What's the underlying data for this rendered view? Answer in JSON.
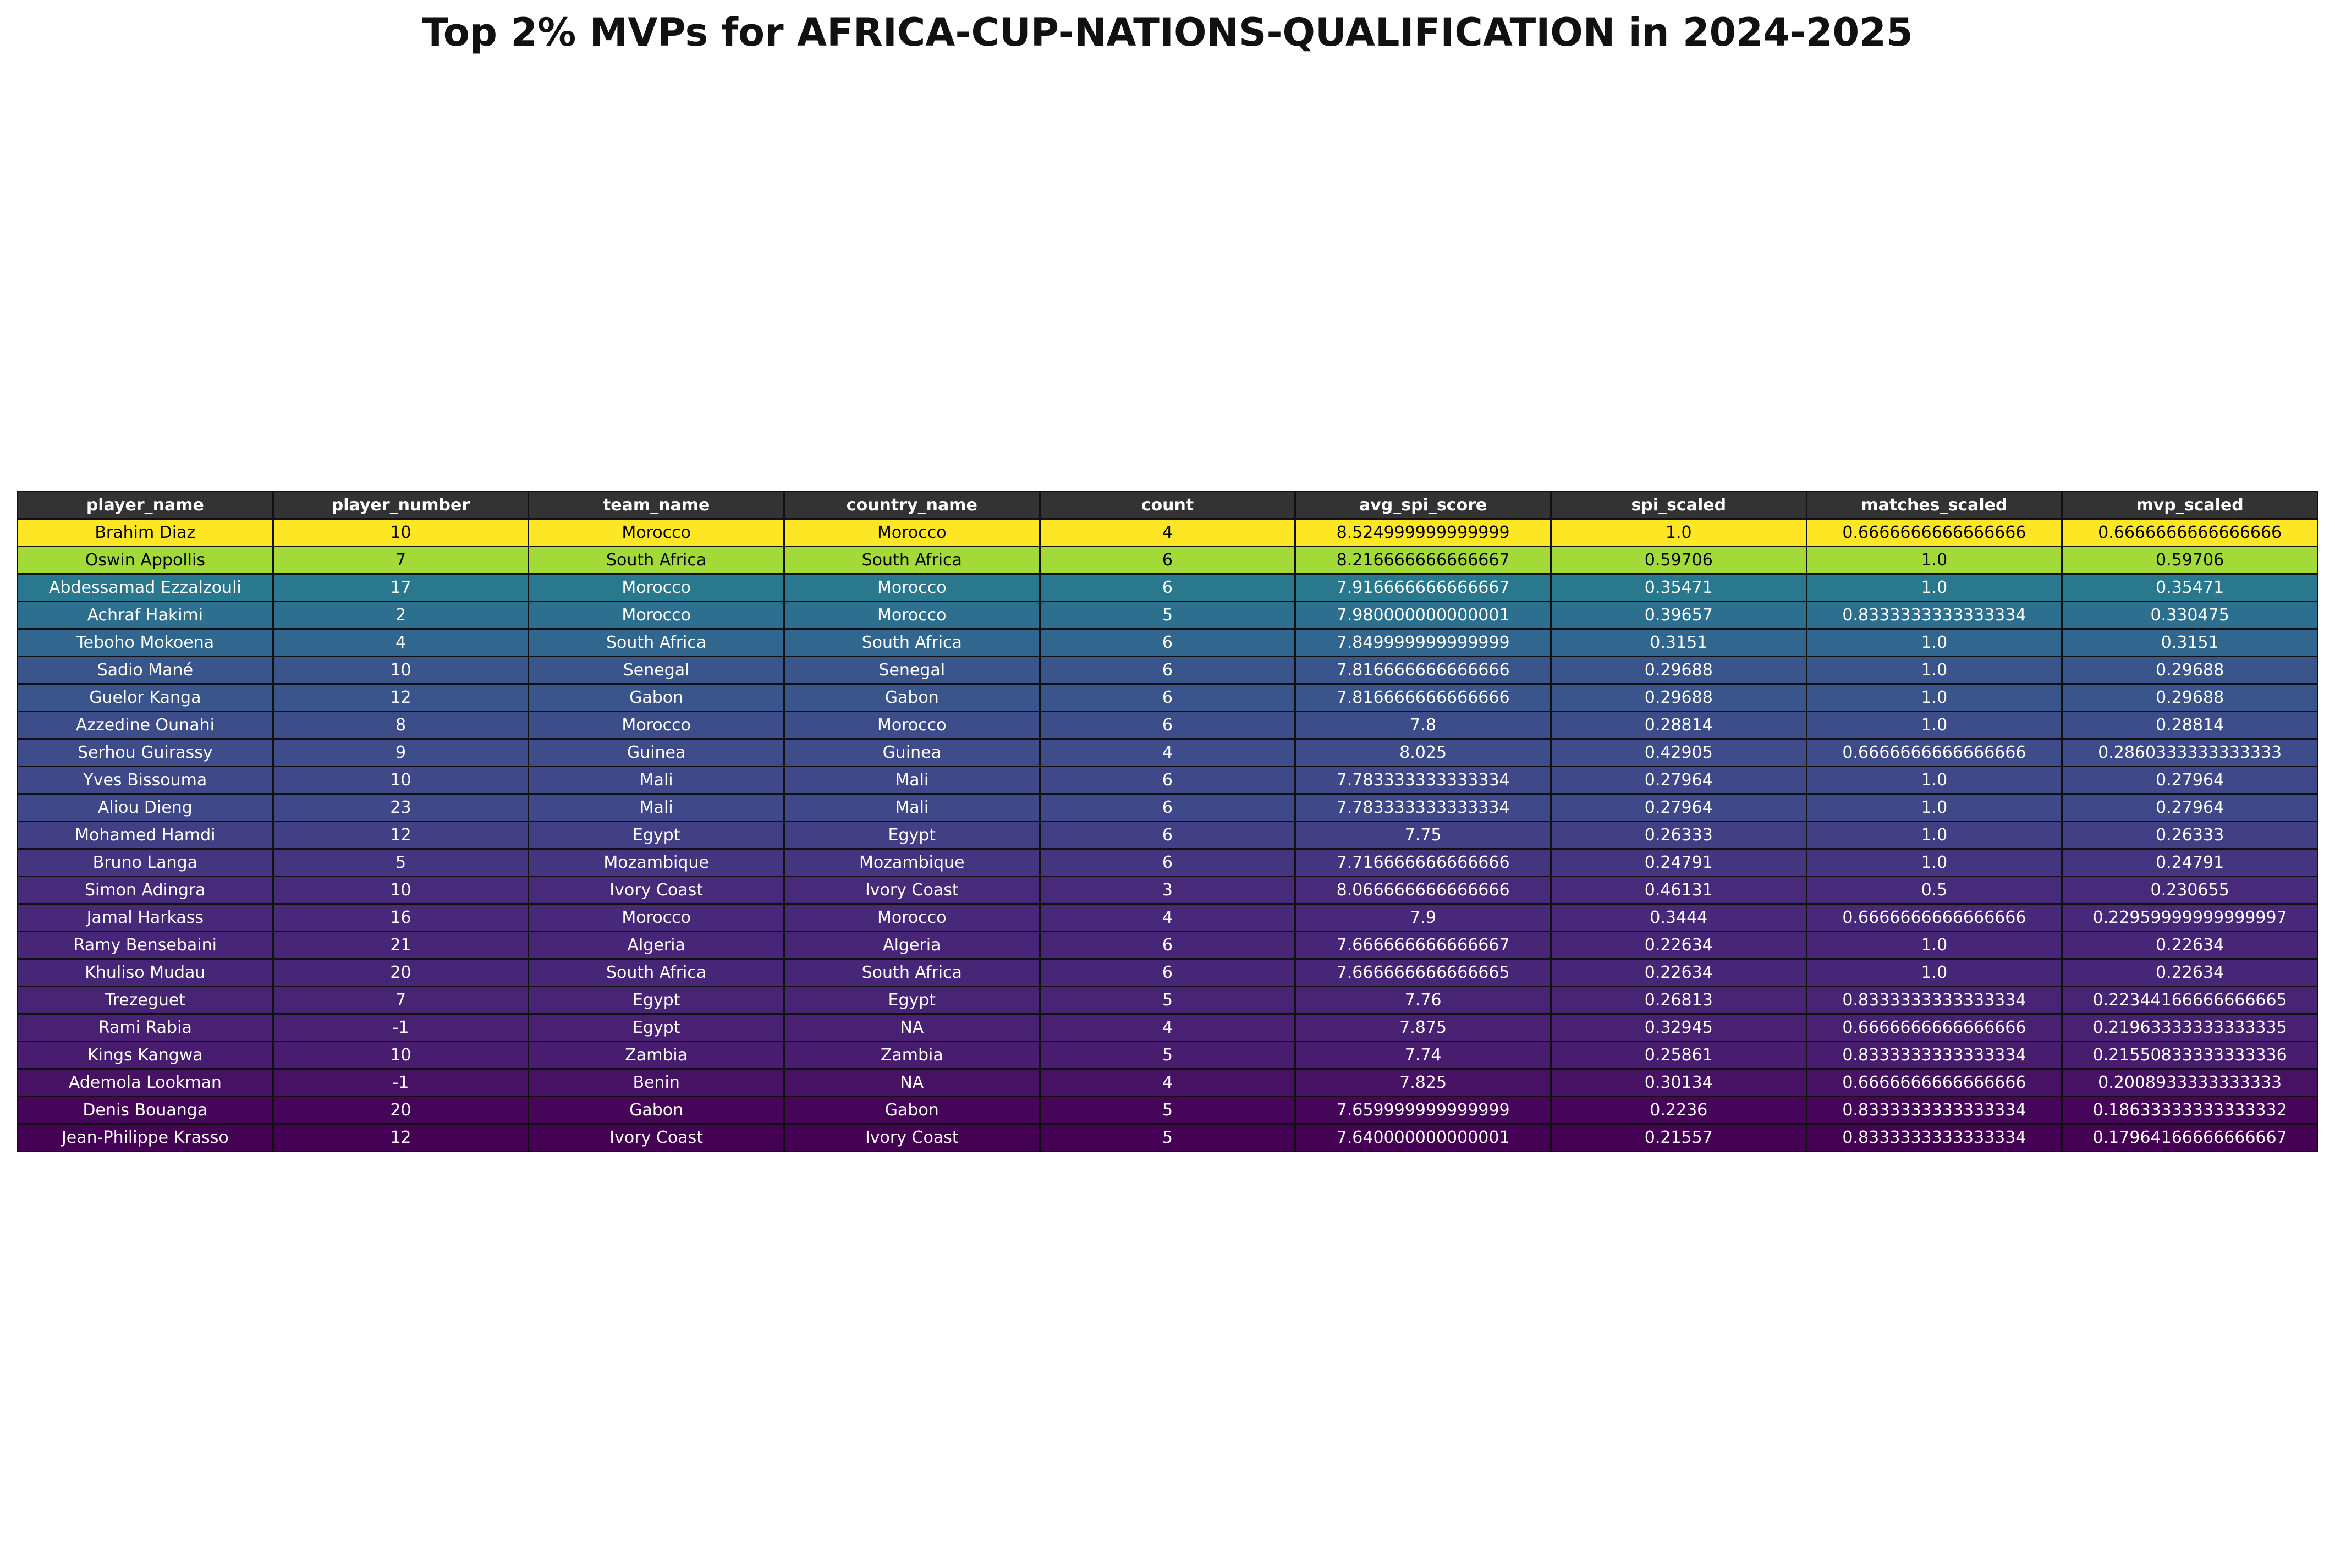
{
  "chart_data": {
    "type": "table",
    "title": "Top 2% MVPs for AFRICA-CUP-NATIONS-QUALIFICATION in 2024-2025",
    "columns": [
      "player_name",
      "player_number",
      "team_name",
      "country_name",
      "count",
      "avg_spi_score",
      "spi_scaled",
      "matches_scaled",
      "mvp_scaled"
    ],
    "row_colormap": "viridis",
    "header_color": "#333333",
    "rows": [
      {
        "cells": [
          "Brahim Diaz",
          "10",
          "Morocco",
          "Morocco",
          "4",
          "8.524999999999999",
          "1.0",
          "0.6666666666666666",
          "0.6666666666666666"
        ],
        "color": "#fde725",
        "text_color": "#000000"
      },
      {
        "cells": [
          "Oswin Appollis",
          "7",
          "South Africa",
          "South Africa",
          "6",
          "8.216666666666667",
          "0.59706",
          "1.0",
          "0.59706"
        ],
        "color": "#a2da37",
        "text_color": "#000000"
      },
      {
        "cells": [
          "Abdessamad Ezzalzouli",
          "17",
          "Morocco",
          "Morocco",
          "6",
          "7.916666666666667",
          "0.35471",
          "1.0",
          "0.35471"
        ],
        "color": "#2a788e",
        "text_color": "#ffffff"
      },
      {
        "cells": [
          "Achraf Hakimi",
          "2",
          "Morocco",
          "Morocco",
          "5",
          "7.980000000000001",
          "0.39657",
          "0.8333333333333334",
          "0.330475"
        ],
        "color": "#2d6f8e",
        "text_color": "#ffffff"
      },
      {
        "cells": [
          "Teboho Mokoena",
          "4",
          "South Africa",
          "South Africa",
          "6",
          "7.849999999999999",
          "0.3151",
          "1.0",
          "0.3151"
        ],
        "color": "#31668e",
        "text_color": "#ffffff"
      },
      {
        "cells": [
          "Sadio Mané",
          "10",
          "Senegal",
          "Senegal",
          "6",
          "7.816666666666666",
          "0.29688",
          "1.0",
          "0.29688"
        ],
        "color": "#3a548c",
        "text_color": "#ffffff"
      },
      {
        "cells": [
          "Guelor Kanga",
          "12",
          "Gabon",
          "Gabon",
          "6",
          "7.816666666666666",
          "0.29688",
          "1.0",
          "0.29688"
        ],
        "color": "#3a548c",
        "text_color": "#ffffff"
      },
      {
        "cells": [
          "Azzedine Ounahi",
          "8",
          "Morocco",
          "Morocco",
          "6",
          "7.8",
          "0.28814",
          "1.0",
          "0.28814"
        ],
        "color": "#3d4d8a",
        "text_color": "#ffffff"
      },
      {
        "cells": [
          "Serhou Guirassy",
          "9",
          "Guinea",
          "Guinea",
          "4",
          "8.025",
          "0.42905",
          "0.6666666666666666",
          "0.2860333333333333"
        ],
        "color": "#3e4c8a",
        "text_color": "#ffffff"
      },
      {
        "cells": [
          "Yves Bissouma",
          "10",
          "Mali",
          "Mali",
          "6",
          "7.783333333333334",
          "0.27964",
          "1.0",
          "0.27964"
        ],
        "color": "#3f4889",
        "text_color": "#ffffff"
      },
      {
        "cells": [
          "Aliou Dieng",
          "23",
          "Mali",
          "Mali",
          "6",
          "7.783333333333334",
          "0.27964",
          "1.0",
          "0.27964"
        ],
        "color": "#3f4889",
        "text_color": "#ffffff"
      },
      {
        "cells": [
          "Mohamed Hamdi",
          "12",
          "Egypt",
          "Egypt",
          "6",
          "7.75",
          "0.26333",
          "1.0",
          "0.26333"
        ],
        "color": "#423f85",
        "text_color": "#ffffff"
      },
      {
        "cells": [
          "Bruno Langa",
          "5",
          "Mozambique",
          "Mozambique",
          "6",
          "7.716666666666666",
          "0.24791",
          "1.0",
          "0.24791"
        ],
        "color": "#453581",
        "text_color": "#ffffff"
      },
      {
        "cells": [
          "Simon Adingra",
          "10",
          "Ivory Coast",
          "Ivory Coast",
          "3",
          "8.066666666666666",
          "0.46131",
          "0.5",
          "0.230655"
        ],
        "color": "#472a7a",
        "text_color": "#ffffff"
      },
      {
        "cells": [
          "Jamal Harkass",
          "16",
          "Morocco",
          "Morocco",
          "4",
          "7.9",
          "0.3444",
          "0.6666666666666666",
          "0.22959999999999997"
        ],
        "color": "#482979",
        "text_color": "#ffffff"
      },
      {
        "cells": [
          "Ramy Bensebaini",
          "21",
          "Algeria",
          "Algeria",
          "6",
          "7.666666666666667",
          "0.22634",
          "1.0",
          "0.22634"
        ],
        "color": "#482677",
        "text_color": "#ffffff"
      },
      {
        "cells": [
          "Khuliso Mudau",
          "20",
          "South Africa",
          "South Africa",
          "6",
          "7.666666666666665",
          "0.22634",
          "1.0",
          "0.22634"
        ],
        "color": "#482677",
        "text_color": "#ffffff"
      },
      {
        "cells": [
          "Trezeguet",
          "7",
          "Egypt",
          "Egypt",
          "5",
          "7.76",
          "0.26813",
          "0.8333333333333334",
          "0.22344166666666665"
        ],
        "color": "#482475",
        "text_color": "#ffffff"
      },
      {
        "cells": [
          "Rami Rabia",
          "-1",
          "Egypt",
          "NA",
          "4",
          "7.875",
          "0.32945",
          "0.6666666666666666",
          "0.21963333333333335"
        ],
        "color": "#482173",
        "text_color": "#ffffff"
      },
      {
        "cells": [
          "Kings Kangwa",
          "10",
          "Zambia",
          "Zambia",
          "5",
          "7.74",
          "0.25861",
          "0.8333333333333334",
          "0.21550833333333336"
        ],
        "color": "#481d6f",
        "text_color": "#ffffff"
      },
      {
        "cells": [
          "Ademola Lookman",
          "-1",
          "Benin",
          "NA",
          "4",
          "7.825",
          "0.30134",
          "0.6666666666666666",
          "0.2008933333333333"
        ],
        "color": "#471164",
        "text_color": "#ffffff"
      },
      {
        "cells": [
          "Denis Bouanga",
          "20",
          "Gabon",
          "Gabon",
          "5",
          "7.659999999999999",
          "0.2236",
          "0.8333333333333334",
          "0.18633333333333332"
        ],
        "color": "#450559",
        "text_color": "#ffffff"
      },
      {
        "cells": [
          "Jean-Philippe Krasso",
          "12",
          "Ivory Coast",
          "Ivory Coast",
          "5",
          "7.640000000000001",
          "0.21557",
          "0.8333333333333334",
          "0.17964166666666667"
        ],
        "color": "#440154",
        "text_color": "#ffffff"
      }
    ]
  }
}
